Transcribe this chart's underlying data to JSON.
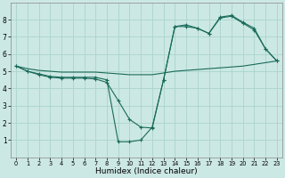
{
  "xlabel": "Humidex (Indice chaleur)",
  "ylabel": "",
  "background_color": "#cce8e4",
  "grid_color": "#aad4cc",
  "line_color": "#1a6b5a",
  "xlim": [
    -0.5,
    23.5
  ],
  "ylim": [
    0,
    9
  ],
  "xticks": [
    0,
    1,
    2,
    3,
    4,
    5,
    6,
    7,
    8,
    9,
    10,
    11,
    12,
    13,
    14,
    15,
    16,
    17,
    18,
    19,
    20,
    21,
    22,
    23
  ],
  "yticks": [
    1,
    2,
    3,
    4,
    5,
    6,
    7,
    8
  ],
  "line1_x": [
    0,
    1,
    2,
    3,
    4,
    5,
    6,
    7,
    8,
    9,
    10,
    11,
    12,
    13,
    14,
    15,
    16,
    17,
    18,
    19,
    20,
    21,
    22,
    23
  ],
  "line1_y": [
    5.3,
    5.0,
    4.8,
    4.65,
    4.6,
    4.6,
    4.6,
    4.55,
    4.35,
    3.3,
    2.2,
    1.75,
    1.7,
    4.5,
    7.6,
    7.7,
    7.5,
    7.2,
    8.1,
    8.2,
    7.8,
    7.4,
    6.3,
    5.6
  ],
  "line2_x": [
    0,
    1,
    2,
    3,
    4,
    5,
    6,
    7,
    8,
    9,
    10,
    11,
    12,
    13,
    14,
    15,
    16,
    17,
    18,
    19,
    20,
    21,
    22,
    23
  ],
  "line2_y": [
    5.3,
    5.0,
    4.85,
    4.7,
    4.65,
    4.65,
    4.65,
    4.65,
    4.5,
    0.9,
    0.9,
    1.0,
    1.75,
    4.5,
    7.6,
    7.6,
    7.5,
    7.2,
    8.15,
    8.25,
    7.85,
    7.5,
    6.3,
    5.6
  ],
  "line3_x": [
    0,
    1,
    2,
    3,
    4,
    5,
    6,
    7,
    8,
    9,
    10,
    11,
    12,
    13,
    14,
    15,
    16,
    17,
    18,
    19,
    20,
    21,
    22,
    23
  ],
  "line3_y": [
    5.3,
    5.15,
    5.05,
    5.0,
    4.95,
    4.95,
    4.95,
    4.95,
    4.9,
    4.85,
    4.8,
    4.8,
    4.8,
    4.9,
    5.0,
    5.05,
    5.1,
    5.15,
    5.2,
    5.25,
    5.3,
    5.4,
    5.5,
    5.6
  ]
}
